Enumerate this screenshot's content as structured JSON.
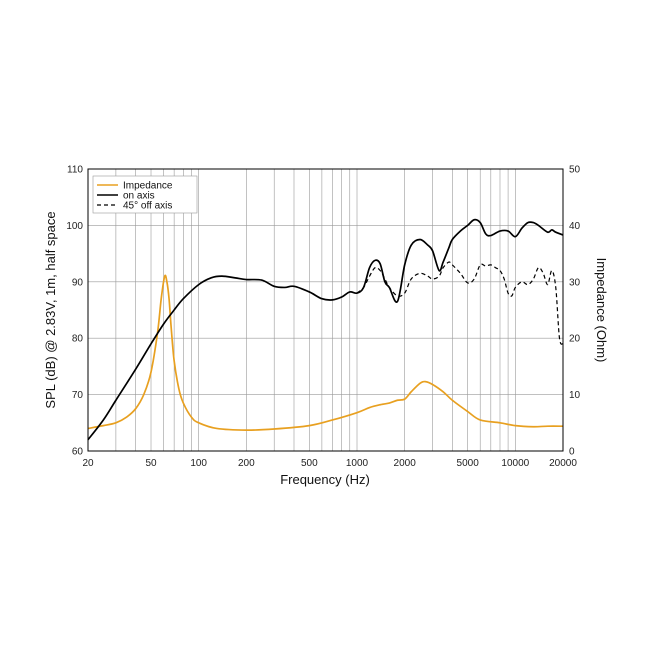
{
  "chart_data": {
    "type": "line",
    "xlabel": "Frequency (Hz)",
    "ylabel": "SPL (dB) @ 2.83V, 1m, half space",
    "y2label": "Impedance (Ohm)",
    "xscale": "log",
    "xlim": [
      20,
      20000
    ],
    "ylim": [
      60,
      110
    ],
    "y2lim": [
      0,
      50
    ],
    "grid": true,
    "legend_position": "top-left",
    "x_tick_labels": [
      "20",
      "50",
      "100",
      "200",
      "500",
      "1000",
      "2000",
      "5000",
      "10000",
      "20000"
    ],
    "x_tick_values": [
      20,
      50,
      100,
      200,
      500,
      1000,
      2000,
      5000,
      10000,
      20000
    ],
    "y_tick_labels": [
      "60",
      "70",
      "80",
      "90",
      "100",
      "110"
    ],
    "y_tick_values": [
      60,
      70,
      80,
      90,
      100,
      110
    ],
    "y2_tick_labels": [
      "0",
      "10",
      "20",
      "30",
      "40",
      "50"
    ],
    "y2_tick_values": [
      0,
      10,
      20,
      30,
      40,
      50
    ],
    "series": [
      {
        "name": "Impedance",
        "axis": "right",
        "color": "#e8a020",
        "style": "solid",
        "x": [
          20,
          25,
          30,
          35,
          40,
          45,
          50,
          55,
          58,
          61,
          63,
          65,
          67,
          70,
          75,
          80,
          90,
          100,
          130,
          200,
          300,
          500,
          700,
          1000,
          1200,
          1400,
          1600,
          1800,
          2000,
          2200,
          2500,
          2700,
          3000,
          3500,
          4000,
          5000,
          6000,
          8000,
          10000,
          13000,
          16000,
          20000
        ],
        "values": [
          4,
          4.5,
          5,
          6,
          7.5,
          10,
          14,
          21,
          27,
          31,
          30,
          27,
          22,
          16,
          11,
          8.5,
          6,
          5,
          4,
          3.7,
          3.9,
          4.5,
          5.5,
          6.8,
          7.7,
          8.2,
          8.5,
          9,
          9.2,
          10.5,
          12,
          12.3,
          11.8,
          10.5,
          9,
          7,
          5.5,
          5,
          4.5,
          4.3,
          4.4,
          4.4
        ]
      },
      {
        "name": "on axis",
        "axis": "left",
        "color": "#000000",
        "style": "solid",
        "x": [
          20,
          25,
          30,
          40,
          50,
          60,
          70,
          80,
          100,
          120,
          140,
          170,
          200,
          250,
          300,
          350,
          400,
          500,
          600,
          700,
          800,
          900,
          1000,
          1100,
          1200,
          1300,
          1400,
          1500,
          1600,
          1800,
          2000,
          2200,
          2500,
          2800,
          3000,
          3300,
          3500,
          3800,
          4000,
          4500,
          5000,
          5500,
          6000,
          6500,
          7000,
          8000,
          9000,
          10000,
          11000,
          12000,
          13000,
          14000,
          16000,
          17000,
          18000,
          20000
        ],
        "values": [
          62,
          65.5,
          69,
          74.5,
          79,
          82.5,
          85,
          87,
          89.5,
          90.7,
          91,
          90.7,
          90.4,
          90.3,
          89.2,
          89,
          89.2,
          88.2,
          87,
          86.8,
          87.3,
          88.2,
          88,
          89,
          92.5,
          93.8,
          93.2,
          90,
          89,
          86.5,
          93,
          96.5,
          97.5,
          96.5,
          95.5,
          92,
          93.5,
          96,
          97.5,
          99,
          100,
          101,
          100.5,
          98.5,
          98.2,
          99,
          99,
          98,
          99.5,
          100.5,
          100.5,
          100,
          98.8,
          99.2,
          98.8,
          98.3
        ]
      },
      {
        "name": "45° off axis",
        "axis": "left",
        "color": "#000000",
        "style": "dashed",
        "x": [
          1000,
          1100,
          1200,
          1300,
          1400,
          1500,
          1600,
          1800,
          2000,
          2200,
          2500,
          2800,
          3000,
          3300,
          3500,
          3800,
          4000,
          4500,
          5000,
          5500,
          6000,
          6500,
          7000,
          7500,
          8000,
          8500,
          9000,
          9500,
          10000,
          11000,
          12000,
          13000,
          14000,
          15000,
          16000,
          17000,
          18000,
          19000,
          20000
        ],
        "values": [
          88,
          89,
          91,
          92.5,
          92,
          90.5,
          89,
          87.5,
          88,
          90.5,
          91.5,
          91,
          90.5,
          91,
          92.5,
          93.5,
          93,
          91.5,
          89.8,
          90.5,
          93,
          92.8,
          93,
          92.5,
          92,
          90.5,
          88,
          87.5,
          89,
          90,
          89.5,
          90.5,
          92.5,
          91.5,
          89.5,
          92,
          89,
          80,
          79
        ]
      }
    ]
  }
}
